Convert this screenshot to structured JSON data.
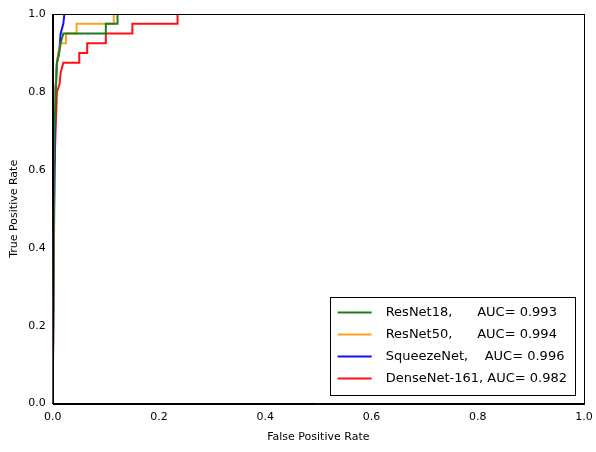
{
  "chart_data": {
    "type": "line",
    "x_label": "False Positive Rate",
    "y_label": "True Positive Rate",
    "xlim": [
      0,
      1
    ],
    "ylim": [
      0,
      1
    ],
    "xticks": [
      {
        "value": 0,
        "label": "0.0"
      },
      0.2,
      0.4,
      0.6,
      0.8,
      {
        "value": 1,
        "label": "1.0"
      }
    ],
    "yticks": [
      {
        "value": 0,
        "label": "0.0"
      },
      0.2,
      0.4,
      0.6,
      0.8,
      {
        "value": 1,
        "label": "1.0"
      }
    ],
    "grid": false,
    "legend": "lower right",
    "line_style": "solid",
    "series": [
      {
        "name": "ResNet18,      AUC= 0.993",
        "color": "#207a20",
        "x": [
          0,
          0.003,
          0.008,
          0.012,
          0.015,
          0.02,
          0.1,
          0.1,
          0.122,
          0.122,
          1
        ],
        "values": [
          0,
          0.7,
          0.875,
          0.9,
          0.925,
          0.95,
          0.95,
          0.975,
          0.975,
          1,
          1
        ]
      },
      {
        "name": "ResNet50,      AUC= 0.994",
        "color": "#ffa020",
        "x": [
          0,
          0.003,
          0.008,
          0.01,
          0.015,
          0.025,
          0.025,
          0.045,
          0.045,
          0.115,
          0.115,
          1
        ],
        "values": [
          0,
          0.75,
          0.875,
          0.9,
          0.925,
          0.925,
          0.95,
          0.95,
          0.975,
          0.975,
          1,
          1
        ]
      },
      {
        "name": "SqueezeNet,    AUC= 0.996",
        "color": "#1010ff",
        "x": [
          0,
          0.003,
          0.005,
          0.008,
          0.012,
          0.015,
          0.02,
          0.022,
          1
        ],
        "values": [
          0,
          0.52,
          0.8,
          0.875,
          0.9,
          0.95,
          0.975,
          1,
          1
        ]
      },
      {
        "name": "DenseNet-161, AUC= 0.982",
        "color": "#ff1010",
        "x": [
          0,
          0.003,
          0.006,
          0.008,
          0.013,
          0.015,
          0.02,
          0.05,
          0.05,
          0.065,
          0.065,
          0.1,
          0.1,
          0.15,
          0.15,
          0.235,
          0.235,
          1
        ],
        "values": [
          0,
          0.6,
          0.72,
          0.8,
          0.82,
          0.85,
          0.875,
          0.875,
          0.9,
          0.9,
          0.925,
          0.925,
          0.95,
          0.95,
          0.975,
          0.975,
          1,
          1
        ]
      }
    ]
  }
}
